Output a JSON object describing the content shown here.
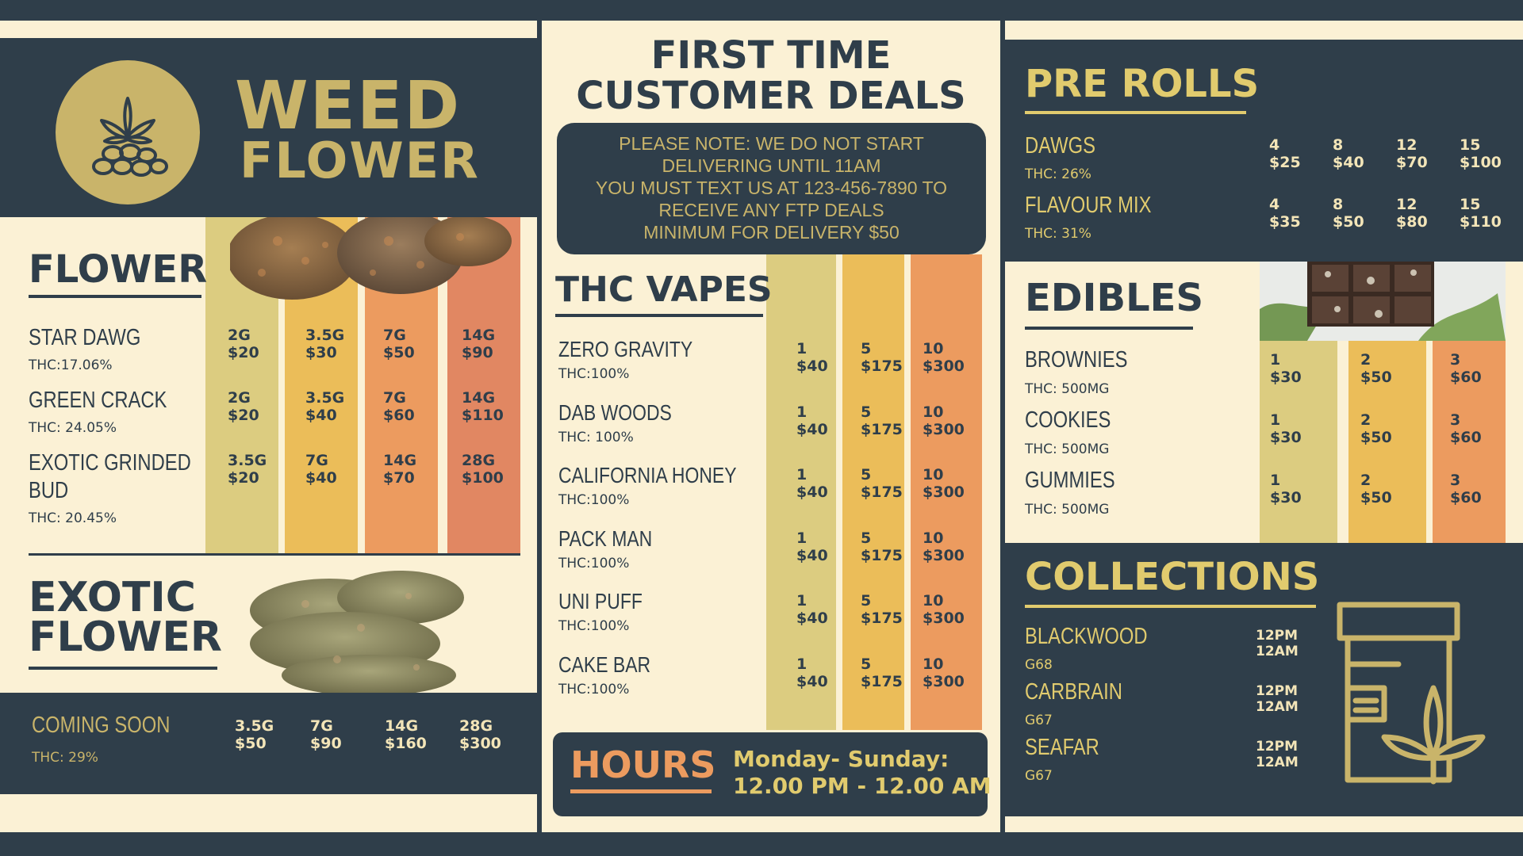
{
  "weed_flower": {
    "title_line1": "WEED",
    "title_line2": "FLOWER"
  },
  "flower": {
    "heading": "FLOWER",
    "items": [
      {
        "name": "STAR DAWG",
        "thc": "THC:17.06%",
        "prices": [
          [
            "2G",
            "$20"
          ],
          [
            "3.5G",
            "$30"
          ],
          [
            "7G",
            "$50"
          ],
          [
            "14G",
            "$90"
          ]
        ]
      },
      {
        "name": "GREEN CRACK",
        "thc": "THC: 24.05%",
        "prices": [
          [
            "2G",
            "$20"
          ],
          [
            "3.5G",
            "$40"
          ],
          [
            "7G",
            "$60"
          ],
          [
            "14G",
            "$110"
          ]
        ]
      },
      {
        "name_line1": "EXOTIC GRINDED",
        "name_line2": "BUD",
        "thc": "THC: 20.45%",
        "prices": [
          [
            "3.5G",
            "$20"
          ],
          [
            "7G",
            "$40"
          ],
          [
            "14G",
            "$70"
          ],
          [
            "28G",
            "$100"
          ]
        ]
      }
    ]
  },
  "exotic": {
    "heading_line1": "EXOTIC",
    "heading_line2": "FLOWER",
    "item": {
      "name": "COMING SOON",
      "thc": "THC: 29%",
      "prices": [
        [
          "3.5G",
          "$50"
        ],
        [
          "7G",
          "$90"
        ],
        [
          "14G",
          "$160"
        ],
        [
          "28G",
          "$300"
        ]
      ]
    }
  },
  "ftc": {
    "title_line1": "FIRST TIME",
    "title_line2": "CUSTOMER DEALS",
    "notes": [
      "PLEASE NOTE: WE DO NOT START",
      "DELIVERING UNTIL 11AM",
      "YOU MUST TEXT US AT 123-456-7890 TO",
      "RECEIVE ANY FTP DEALS",
      "MINIMUM FOR DELIVERY $50"
    ]
  },
  "vapes": {
    "heading": "THC VAPES",
    "items": [
      {
        "name": "ZERO GRAVITY",
        "thc": "THC:100%"
      },
      {
        "name": "DAB WOODS",
        "thc": "THC: 100%"
      },
      {
        "name": "CALIFORNIA HONEY",
        "thc": "THC:100%"
      },
      {
        "name": "PACK MAN",
        "thc": "THC:100%"
      },
      {
        "name": "UNI PUFF",
        "thc": "THC:100%"
      },
      {
        "name": "CAKE BAR",
        "thc": "THC:100%"
      }
    ],
    "prices": [
      [
        "1",
        "$40"
      ],
      [
        "5",
        "$175"
      ],
      [
        "10",
        "$300"
      ]
    ]
  },
  "hours": {
    "label": "HOURS",
    "days": "Monday- Sunday:",
    "times": "12.00 PM - 12.00 AM"
  },
  "prerolls": {
    "heading": "PRE ROLLS",
    "items": [
      {
        "name": "DAWGS",
        "thc": "THC: 26%",
        "prices": [
          [
            "4",
            "$25"
          ],
          [
            "8",
            "$40"
          ],
          [
            "12",
            "$70"
          ],
          [
            "15",
            "$100"
          ]
        ]
      },
      {
        "name": "FLAVOUR MIX",
        "thc": "THC: 31%",
        "prices": [
          [
            "4",
            "$35"
          ],
          [
            "8",
            "$50"
          ],
          [
            "12",
            "$80"
          ],
          [
            "15",
            "$110"
          ]
        ]
      }
    ]
  },
  "edibles": {
    "heading": "EDIBLES",
    "items": [
      {
        "name": "BROWNIES",
        "thc": "THC: 500MG"
      },
      {
        "name": "COOKIES",
        "thc": "THC: 500MG"
      },
      {
        "name": "GUMMIES",
        "thc": "THC: 500MG"
      }
    ],
    "prices": [
      [
        "1",
        "$30"
      ],
      [
        "2",
        "$50"
      ],
      [
        "3",
        "$60"
      ]
    ]
  },
  "collections": {
    "heading": "COLLECTIONS",
    "items": [
      {
        "name": "BLACKWOOD",
        "code": "G68",
        "t1": "12PM",
        "t2": "12AM"
      },
      {
        "name": "CARBRAIN",
        "code": "G67",
        "t1": "12PM",
        "t2": "12AM"
      },
      {
        "name": "SEAFAR",
        "code": "G67",
        "t1": "12PM",
        "t2": "12AM"
      }
    ]
  },
  "colors": {
    "navy": "#2f3e4a",
    "cream": "#fbf1d5",
    "gold": "#c9b46a",
    "yellow": "#e1cb6e",
    "orange": "#ec9b5f"
  },
  "icons": [
    "cannabis-leaf-icon",
    "prescription-jar-icon"
  ]
}
